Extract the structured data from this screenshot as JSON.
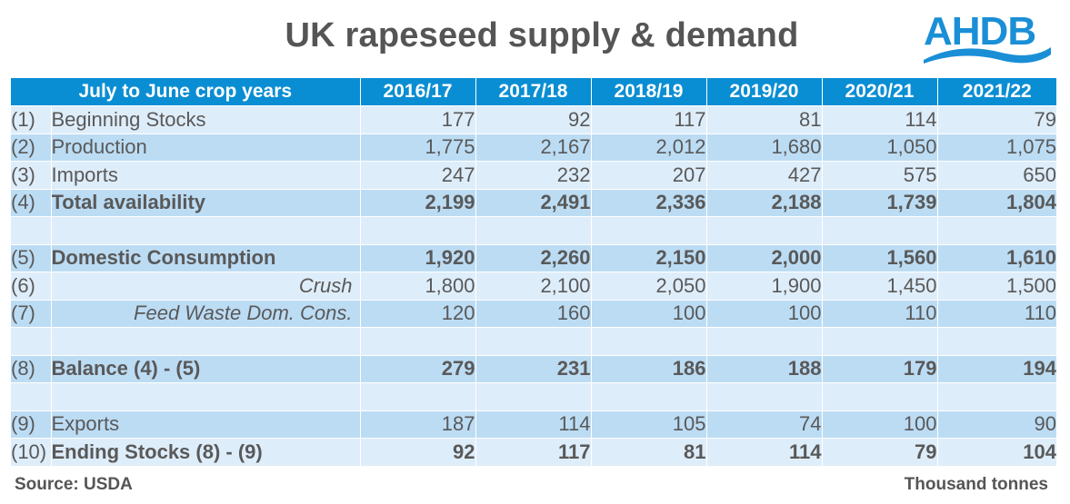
{
  "title": "UK rapeseed supply & demand",
  "logo": {
    "text": "AHDB",
    "icon": "ahdb-wave-logo",
    "color": "#1a8fd6"
  },
  "colors": {
    "header_bg": "#0a8ed3",
    "row_light": "#deedfa",
    "row_dark": "#bcdcf4",
    "text": "#595959"
  },
  "table": {
    "header_label": "July to June crop years",
    "years": [
      "2016/17",
      "2017/18",
      "2018/19",
      "2019/20",
      "2020/21",
      "2021/22"
    ],
    "rows": [
      {
        "index": "(1)",
        "label": "Beginning Stocks",
        "style": "normal",
        "values": [
          "177",
          "92",
          "117",
          "81",
          "114",
          "79"
        ]
      },
      {
        "index": "(2)",
        "label": "Production",
        "style": "normal",
        "values": [
          "1,775",
          "2,167",
          "2,012",
          "1,680",
          "1,050",
          "1,075"
        ]
      },
      {
        "index": "(3)",
        "label": "Imports",
        "style": "normal",
        "values": [
          "247",
          "232",
          "207",
          "427",
          "575",
          "650"
        ]
      },
      {
        "index": "(4)",
        "label": "Total availability",
        "style": "bold",
        "values": [
          "2,199",
          "2,491",
          "2,336",
          "2,188",
          "1,739",
          "1,804"
        ]
      },
      {
        "index": "",
        "label": "",
        "style": "blank",
        "values": [
          "",
          "",
          "",
          "",
          "",
          ""
        ]
      },
      {
        "index": "(5)",
        "label": "Domestic Consumption",
        "style": "bold",
        "values": [
          "1,920",
          "2,260",
          "2,150",
          "2,000",
          "1,560",
          "1,610"
        ]
      },
      {
        "index": "(6)",
        "label": "Crush",
        "style": "italic",
        "values": [
          "1,800",
          "2,100",
          "2,050",
          "1,900",
          "1,450",
          "1,500"
        ]
      },
      {
        "index": "(7)",
        "label": "Feed Waste Dom. Cons.",
        "style": "italic",
        "values": [
          "120",
          "160",
          "100",
          "100",
          "110",
          "110"
        ]
      },
      {
        "index": "",
        "label": "",
        "style": "blank",
        "values": [
          "",
          "",
          "",
          "",
          "",
          ""
        ]
      },
      {
        "index": "(8)",
        "label": "Balance (4) - (5)",
        "style": "bold",
        "values": [
          "279",
          "231",
          "186",
          "188",
          "179",
          "194"
        ]
      },
      {
        "index": "",
        "label": "",
        "style": "blank",
        "values": [
          "",
          "",
          "",
          "",
          "",
          ""
        ]
      },
      {
        "index": "(9)",
        "label": "Exports",
        "style": "normal",
        "values": [
          "187",
          "114",
          "105",
          "74",
          "100",
          "90"
        ]
      },
      {
        "index": "(10)",
        "label": "Ending Stocks (8) - (9)",
        "style": "bold",
        "values": [
          "92",
          "117",
          "81",
          "114",
          "79",
          "104"
        ]
      }
    ]
  },
  "footer": {
    "source": "Source: USDA",
    "units": "Thousand tonnes"
  }
}
